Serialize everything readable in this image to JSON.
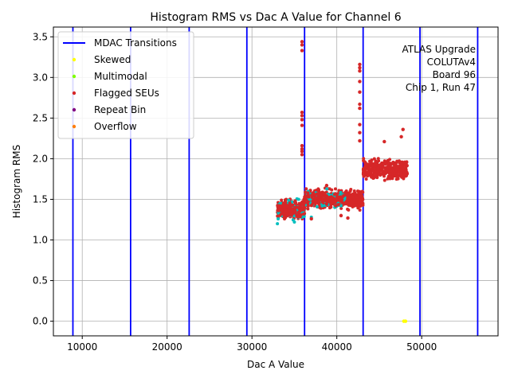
{
  "chart_data": {
    "type": "scatter",
    "title": "Histogram RMS vs Dac A Value for Channel 6",
    "xlabel": "Dac A Value",
    "ylabel": "Histogram RMS",
    "xlim": [
      6600,
      59000
    ],
    "ylim": [
      -0.18,
      3.62
    ],
    "x_ticks": [
      10000,
      20000,
      30000,
      40000,
      50000
    ],
    "x_tick_labels": [
      "10000",
      "20000",
      "30000",
      "40000",
      "50000"
    ],
    "y_ticks": [
      0.0,
      0.5,
      1.0,
      1.5,
      2.0,
      2.5,
      3.0,
      3.5
    ],
    "y_tick_labels": [
      "0.0",
      "0.5",
      "1.0",
      "1.5",
      "2.0",
      "2.5",
      "3.0",
      "3.5"
    ],
    "grid": true,
    "legend_position": "top-left",
    "annotation_lines": [
      "ATLAS Upgrade",
      "COLUTAv4",
      "Board 96",
      "Chip 1, Run 47"
    ],
    "annotation_position": "top-right",
    "vlines": {
      "name": "MDAC Transitions",
      "color": "#0000ff",
      "x": [
        8900,
        15700,
        22600,
        29400,
        36200,
        43100,
        49800,
        56600
      ]
    },
    "series": [
      {
        "name": "Skewed",
        "color": "#ffff00",
        "points": [
          [
            47900,
            0.0
          ],
          [
            48100,
            0.0
          ]
        ]
      },
      {
        "name": "Multimodal",
        "color": "#7fff00",
        "points": []
      },
      {
        "name": "Flagged SEUs",
        "color": "#d62728",
        "points": []
      },
      {
        "name": "Repeat Bin",
        "color": "#800080",
        "points": []
      },
      {
        "name": "Overflow",
        "color": "#ff7f0e",
        "points": []
      }
    ],
    "normal_points": {
      "color": "#00bfbf",
      "x_range": [
        33000,
        41000
      ],
      "points": [
        [
          33000,
          1.2
        ],
        [
          33500,
          1.45
        ],
        [
          34500,
          1.3
        ],
        [
          35000,
          1.22
        ],
        [
          35500,
          1.5
        ],
        [
          36000,
          1.35
        ],
        [
          36500,
          1.55
        ],
        [
          37000,
          1.28
        ],
        [
          37500,
          1.58
        ],
        [
          38500,
          1.5
        ],
        [
          39500,
          1.52
        ],
        [
          40500,
          1.48
        ]
      ]
    },
    "flagged_clusters": [
      {
        "x_range": [
          33000,
          36200
        ],
        "y_center": 1.38,
        "y_spread": 0.09
      },
      {
        "x_range": [
          36200,
          43100
        ],
        "y_center": 1.5,
        "y_spread": 0.09
      },
      {
        "x_range": [
          43100,
          48300
        ],
        "y_center": 1.87,
        "y_spread": 0.1
      }
    ],
    "flagged_outliers": [
      [
        35900,
        3.44
      ],
      [
        35900,
        3.4
      ],
      [
        35900,
        3.33
      ],
      [
        35900,
        2.57
      ],
      [
        35900,
        2.53
      ],
      [
        35900,
        2.48
      ],
      [
        35900,
        2.41
      ],
      [
        35900,
        2.16
      ],
      [
        35900,
        2.12
      ],
      [
        35900,
        2.09
      ],
      [
        35900,
        2.05
      ],
      [
        42700,
        3.16
      ],
      [
        42700,
        3.12
      ],
      [
        42700,
        3.08
      ],
      [
        42700,
        2.95
      ],
      [
        42700,
        2.82
      ],
      [
        42700,
        2.67
      ],
      [
        42700,
        2.62
      ],
      [
        42700,
        2.42
      ],
      [
        42700,
        2.32
      ],
      [
        42700,
        2.22
      ],
      [
        47600,
        2.27
      ],
      [
        47800,
        2.36
      ],
      [
        45600,
        2.21
      ],
      [
        41300,
        1.27
      ],
      [
        40500,
        1.3
      ],
      [
        37000,
        1.26
      ],
      [
        38800,
        1.67
      ]
    ]
  }
}
